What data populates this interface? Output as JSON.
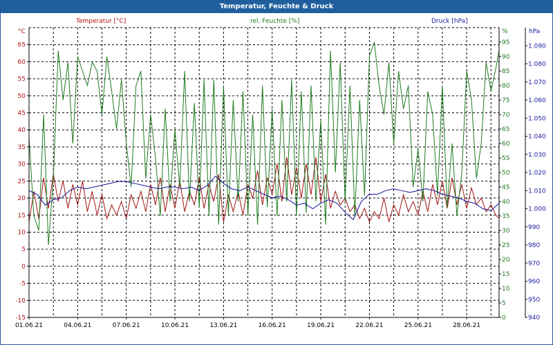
{
  "window": {
    "title": "Temperatur, Feuchte & Druck"
  },
  "chart_data": {
    "type": "line",
    "title": "Temperatur, Feuchte & Druck",
    "grid": true,
    "x_range": [
      "01.06.21",
      "30.06.21"
    ],
    "x_ticks": [
      "01.06.21",
      "04.06.21",
      "07.06.21",
      "10.06.21",
      "13.06.21",
      "16.06.21",
      "19.06.21",
      "22.06.21",
      "25.06.21",
      "28.06.21"
    ],
    "axes": {
      "left": {
        "unit_label": "°C",
        "series_label": "Temperatur [°C]",
        "min": -15,
        "max": 70,
        "ticks": [
          -15,
          -10,
          -5,
          0,
          5,
          10,
          15,
          20,
          25,
          30,
          35,
          40,
          45,
          50,
          55,
          60,
          65
        ],
        "color": "#b01010"
      },
      "middle": {
        "unit_label": "%",
        "series_label": "rel. Feuchte [%]",
        "min": 0,
        "max": 100,
        "ticks": [
          0,
          5,
          10,
          15,
          20,
          25,
          30,
          35,
          40,
          45,
          50,
          55,
          60,
          65,
          70,
          75,
          80,
          85,
          90,
          95
        ],
        "color": "#207a20"
      },
      "right": {
        "unit_label": "hPa",
        "series_label": "Druck [hPa]",
        "min": 940,
        "max": 1100,
        "ticks": [
          940,
          950,
          960,
          970,
          980,
          990,
          1000,
          1010,
          1020,
          1030,
          1040,
          1050,
          1060,
          1070,
          1080,
          1090
        ],
        "color": "#1a1aa0"
      }
    },
    "series": [
      {
        "name": "Temperatur [°C]",
        "axis": "left",
        "color": "#a01010",
        "x": [
          1.0,
          1.3,
          1.6,
          1.9,
          2.2,
          2.5,
          2.8,
          3.1,
          3.4,
          3.7,
          4.0,
          4.3,
          4.6,
          4.9,
          5.2,
          5.5,
          5.8,
          6.1,
          6.4,
          6.7,
          7.0,
          7.3,
          7.6,
          7.9,
          8.2,
          8.5,
          8.8,
          9.1,
          9.4,
          9.7,
          10.0,
          10.3,
          10.6,
          10.9,
          11.2,
          11.5,
          11.8,
          12.1,
          12.4,
          12.7,
          13.0,
          13.3,
          13.6,
          13.9,
          14.2,
          14.5,
          14.8,
          15.1,
          15.4,
          15.7,
          16.0,
          16.3,
          16.6,
          16.9,
          17.2,
          17.5,
          17.8,
          18.1,
          18.4,
          18.7,
          19.0,
          19.3,
          19.6,
          19.9,
          20.2,
          20.5,
          20.8,
          21.1,
          21.4,
          21.7,
          22.0,
          22.3,
          22.6,
          22.9,
          23.2,
          23.5,
          23.8,
          24.1,
          24.4,
          24.7,
          25.0,
          25.3,
          25.6,
          25.9,
          26.2,
          26.5,
          26.8,
          27.1,
          27.4,
          27.7,
          28.0,
          28.3,
          28.6,
          28.9,
          29.2,
          29.5,
          29.8,
          30.0
        ],
        "values": [
          13,
          22,
          14,
          26,
          17,
          27,
          19,
          25,
          17,
          24,
          18,
          25,
          16,
          22,
          15,
          21,
          14,
          18,
          15,
          19,
          14,
          21,
          17,
          22,
          16,
          24,
          18,
          26,
          16,
          24,
          17,
          25,
          16,
          22,
          18,
          26,
          17,
          24,
          19,
          27,
          13,
          21,
          16,
          22,
          15,
          24,
          20,
          28,
          18,
          26,
          21,
          30,
          19,
          32,
          21,
          29,
          20,
          30,
          21,
          32,
          19,
          27,
          17,
          22,
          18,
          20,
          16,
          18,
          14,
          17,
          13,
          16,
          14,
          20,
          13,
          18,
          15,
          21,
          16,
          19,
          15,
          22,
          16,
          24,
          18,
          25,
          17,
          26,
          18,
          24,
          17,
          23,
          18,
          20,
          16,
          18,
          15,
          14
        ]
      },
      {
        "name": "rel. Feuchte [%]",
        "axis": "middle",
        "color": "#1f7a1f",
        "x": [
          1.0,
          1.3,
          1.6,
          1.9,
          2.2,
          2.5,
          2.8,
          3.1,
          3.4,
          3.7,
          4.0,
          4.3,
          4.6,
          4.9,
          5.2,
          5.5,
          5.8,
          6.1,
          6.4,
          6.7,
          7.0,
          7.3,
          7.6,
          7.9,
          8.2,
          8.5,
          8.8,
          9.1,
          9.4,
          9.7,
          10.0,
          10.3,
          10.6,
          10.9,
          11.2,
          11.5,
          11.8,
          12.1,
          12.4,
          12.7,
          13.0,
          13.3,
          13.6,
          13.9,
          14.2,
          14.5,
          14.8,
          15.1,
          15.4,
          15.7,
          16.0,
          16.3,
          16.6,
          16.9,
          17.2,
          17.5,
          17.8,
          18.1,
          18.4,
          18.7,
          19.0,
          19.3,
          19.6,
          19.9,
          20.2,
          20.5,
          20.8,
          21.1,
          21.4,
          21.7,
          22.0,
          22.3,
          22.6,
          22.9,
          23.2,
          23.5,
          23.8,
          24.1,
          24.4,
          24.7,
          25.0,
          25.3,
          25.6,
          25.9,
          26.2,
          26.5,
          26.8,
          27.1,
          27.4,
          27.7,
          28.0,
          28.3,
          28.6,
          28.9,
          29.2,
          29.5,
          29.8,
          30.0
        ],
        "values": [
          62,
          35,
          30,
          70,
          25,
          48,
          92,
          75,
          88,
          60,
          90,
          85,
          80,
          88,
          85,
          70,
          90,
          78,
          65,
          82,
          60,
          45,
          80,
          85,
          48,
          70,
          55,
          35,
          72,
          40,
          65,
          45,
          85,
          40,
          74,
          38,
          82,
          35,
          82,
          32,
          80,
          35,
          75,
          40,
          78,
          35,
          70,
          32,
          80,
          38,
          72,
          35,
          75,
          40,
          82,
          35,
          78,
          36,
          80,
          40,
          68,
          32,
          92,
          50,
          88,
          40,
          80,
          35,
          75,
          42,
          90,
          95,
          80,
          70,
          88,
          60,
          85,
          72,
          80,
          45,
          58,
          40,
          78,
          70,
          42,
          80,
          38,
          60,
          35,
          50,
          85,
          75,
          48,
          60,
          88,
          78,
          86,
          92
        ]
      },
      {
        "name": "Druck [hPa]",
        "axis": "right",
        "color": "#10109a",
        "x": [
          1.0,
          1.5,
          2.0,
          2.5,
          3.0,
          3.5,
          4.0,
          4.5,
          5.0,
          5.5,
          6.0,
          6.5,
          7.0,
          7.5,
          8.0,
          8.5,
          9.0,
          9.5,
          10.0,
          10.5,
          11.0,
          11.5,
          12.0,
          12.5,
          13.0,
          13.5,
          14.0,
          14.5,
          15.0,
          15.5,
          16.0,
          16.5,
          17.0,
          17.5,
          18.0,
          18.5,
          19.0,
          19.5,
          20.0,
          20.5,
          21.0,
          21.5,
          22.0,
          22.5,
          23.0,
          23.5,
          24.0,
          24.5,
          25.0,
          25.5,
          26.0,
          26.5,
          27.0,
          27.5,
          28.0,
          28.5,
          29.0,
          29.5,
          30.0
        ],
        "values": [
          1010,
          1008,
          1002,
          1005,
          1006,
          1010,
          1012,
          1011,
          1012,
          1013,
          1014,
          1015,
          1015,
          1014,
          1013,
          1012,
          1011,
          1012,
          1012,
          1011,
          1012,
          1010,
          1013,
          1018,
          1014,
          1011,
          1010,
          1012,
          1010,
          1008,
          1006,
          1007,
          1005,
          1002,
          1003,
          1000,
          1003,
          1005,
          1003,
          998,
          994,
          1004,
          1008,
          1008,
          1010,
          1011,
          1010,
          1009,
          1010,
          1011,
          1010,
          1008,
          1007,
          1006,
          1004,
          1003,
          1000,
          999,
          1003
        ]
      }
    ]
  }
}
